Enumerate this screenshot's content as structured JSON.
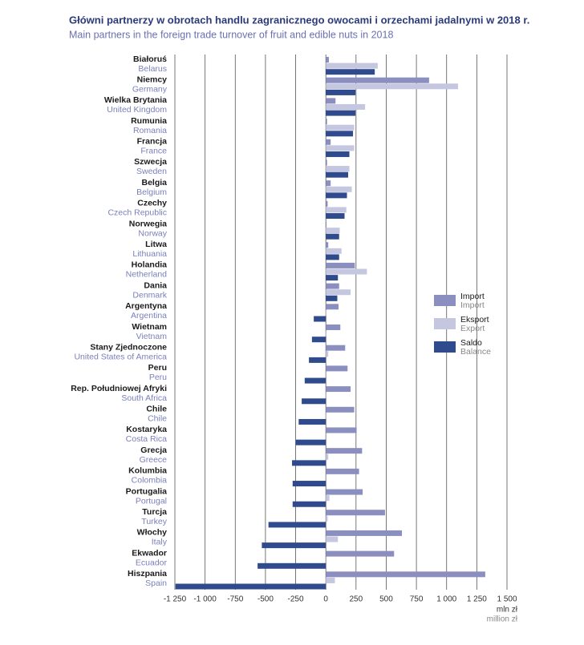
{
  "chart_data": {
    "type": "hbar",
    "title": "Główni partnerzy w obrotach handlu zagranicznego owocami i orzechami jadalnymi w 2018 r.",
    "subtitle": "Main partners in the foreign trade turnover of fruit and edible nuts in 2018",
    "x_label": "mln zł",
    "x_label_en": "million zł",
    "categories": [
      "Białoruś",
      "Niemcy",
      "Wielka Brytania",
      "Rumunia",
      "Francja",
      "Szwecja",
      "Belgia",
      "Czechy",
      "Norwegia",
      "Litwa",
      "Holandia",
      "Dania",
      "Argentyna",
      "Wietnam",
      "Stany Zjednoczone",
      "Peru",
      "Rep. Południowej Afryki",
      "Chile",
      "Kostaryka",
      "Grecja",
      "Kolumbia",
      "Portugalia",
      "Turcja",
      "Włochy",
      "Ekwador",
      "Hiszpania"
    ],
    "categories_en": [
      "Belarus",
      "Germany",
      "United Kingdom",
      "Romania",
      "France",
      "Sweden",
      "Belgium",
      "Czech Republic",
      "Norway",
      "Lithuania",
      "Netherland",
      "Denmark",
      "Argentina",
      "Vietnam",
      "United States of America",
      "Peru",
      "South Africa",
      "Chile",
      "Costa Rica",
      "Greece",
      "Colombia",
      "Portugal",
      "Turkey",
      "Italy",
      "Ecuador",
      "Spain"
    ],
    "series": [
      {
        "name": "Import",
        "name_en": "Import",
        "color": "#8a8fc0",
        "values": [
          25,
          855,
          80,
          10,
          40,
          10,
          40,
          15,
          5,
          20,
          240,
          110,
          105,
          120,
          160,
          180,
          205,
          235,
          255,
          300,
          275,
          305,
          490,
          630,
          565,
          1320
        ]
      },
      {
        "name": "Eksport",
        "name_en": "Export",
        "color": "#c5c7e1",
        "values": [
          430,
          1095,
          325,
          235,
          235,
          195,
          215,
          170,
          115,
          130,
          340,
          205,
          2,
          2,
          20,
          1,
          5,
          3,
          1,
          20,
          1,
          30,
          15,
          100,
          1,
          75
        ]
      },
      {
        "name": "Saldo",
        "name_en": "Balance",
        "color": "#2f4b8d",
        "values": [
          405,
          245,
          245,
          225,
          195,
          185,
          175,
          155,
          110,
          110,
          100,
          95,
          -100,
          -115,
          -140,
          -175,
          -200,
          -225,
          -250,
          -280,
          -275,
          -275,
          -475,
          -530,
          -565,
          -1245
        ]
      }
    ],
    "xlim": [
      -1250,
      1500
    ],
    "xticks": [
      {
        "value": -1250,
        "label": "-1 250"
      },
      {
        "value": -1000,
        "label": "-1 000"
      },
      {
        "value": -750,
        "label": "-750"
      },
      {
        "value": -500,
        "label": "-500"
      },
      {
        "value": -250,
        "label": "-250"
      },
      0,
      250,
      500,
      750,
      {
        "value": 1000,
        "label": "1 000"
      },
      {
        "value": 1250,
        "label": "1 250"
      },
      {
        "value": 1500,
        "label": "1 500"
      }
    ],
    "grid": true,
    "legend": "right"
  }
}
